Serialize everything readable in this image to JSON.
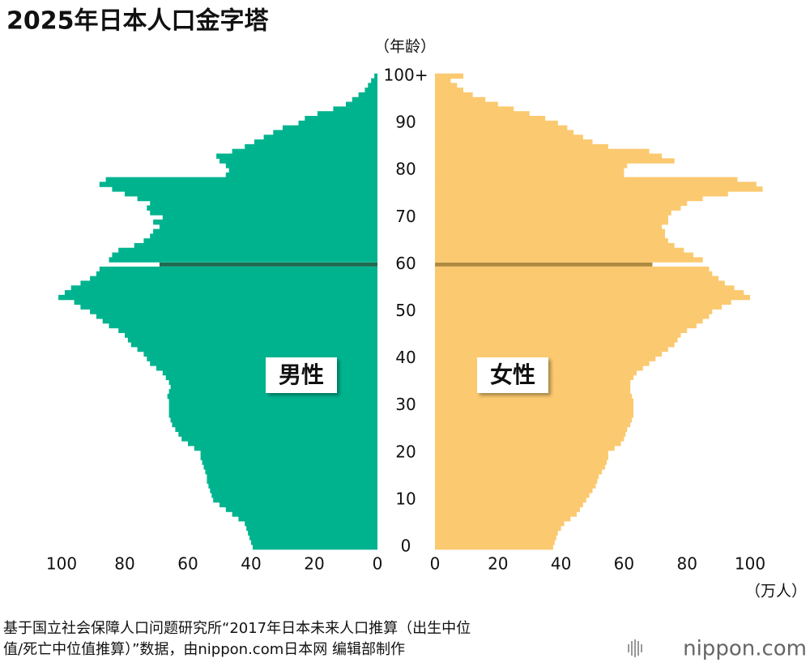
{
  "chart_data": {
    "type": "pyramid",
    "title": "2025年日本人口金字塔",
    "y_label": "（年龄）",
    "x_label": "（万人）",
    "x": [
      0,
      1,
      2,
      3,
      4,
      5,
      6,
      7,
      8,
      9,
      10,
      11,
      12,
      13,
      14,
      15,
      16,
      17,
      18,
      19,
      20,
      21,
      22,
      23,
      24,
      25,
      26,
      27,
      28,
      29,
      30,
      31,
      32,
      33,
      34,
      35,
      36,
      37,
      38,
      39,
      40,
      41,
      42,
      43,
      44,
      45,
      46,
      47,
      48,
      49,
      50,
      51,
      52,
      53,
      54,
      55,
      56,
      57,
      58,
      59,
      60,
      61,
      62,
      63,
      64,
      65,
      66,
      67,
      68,
      69,
      70,
      71,
      72,
      73,
      74,
      75,
      76,
      77,
      78,
      79,
      80,
      81,
      82,
      83,
      84,
      85,
      86,
      87,
      88,
      89,
      90,
      91,
      92,
      93,
      94,
      95,
      96,
      97,
      98,
      99,
      100
    ],
    "series": [
      {
        "name": "男性",
        "color": "#00b38f",
        "highlight_color": "#1f6a52",
        "values": [
          39.5,
          40,
          40.5,
          41,
          41.5,
          42,
          44,
          46,
          48,
          50,
          52,
          52.5,
          53,
          53.5,
          54,
          54,
          54.5,
          55,
          55.5,
          56,
          56,
          58,
          60,
          62,
          63,
          64,
          65,
          65.5,
          66,
          66,
          66,
          66,
          66.5,
          66,
          65.5,
          66,
          67,
          68,
          70,
          72,
          73,
          74,
          76,
          78,
          79,
          80,
          82,
          85,
          87,
          89,
          91,
          94,
          96,
          101,
          99,
          97,
          94,
          91,
          89,
          88,
          69,
          85,
          84,
          82,
          77,
          74,
          72,
          71,
          69,
          71,
          68,
          72,
          73,
          72,
          76,
          80,
          84,
          88,
          86,
          48,
          47,
          48,
          50,
          51,
          46,
          42,
          39,
          36,
          33,
          30,
          25,
          23,
          19,
          14,
          10,
          8,
          6,
          4,
          3,
          2,
          1
        ]
      },
      {
        "name": "女性",
        "color": "#fbc96f",
        "highlight_color": "#b08a3e",
        "values": [
          37.5,
          38,
          38.5,
          39,
          40,
          41,
          43,
          45,
          46,
          47,
          48,
          49,
          50,
          51,
          51.5,
          52,
          53,
          54,
          54.5,
          55,
          55,
          57,
          59,
          60,
          60.5,
          61,
          62,
          62.5,
          63,
          63,
          63,
          63,
          62.5,
          62,
          62,
          62,
          63,
          64,
          66,
          68,
          70,
          72,
          74,
          76,
          77,
          78,
          80,
          83,
          85,
          87,
          88,
          91,
          94,
          100,
          98,
          95,
          92,
          90,
          88,
          87,
          69,
          85,
          82,
          79,
          76,
          74,
          73,
          73,
          72,
          74,
          74,
          75,
          78,
          80,
          85,
          93,
          104,
          102,
          96,
          60,
          60,
          61,
          76,
          72,
          68,
          55,
          50,
          47,
          44,
          42,
          39,
          35,
          30,
          25,
          20,
          16,
          12,
          9,
          7,
          5,
          9
        ]
      }
    ],
    "highlight_x": 60,
    "xlim": [
      0,
      100
    ],
    "xticks": [
      0,
      20,
      40,
      60,
      80,
      100
    ],
    "ylim": [
      -0.5,
      100.5
    ],
    "yticks": [
      0,
      10,
      20,
      30,
      40,
      50,
      60,
      70,
      80,
      90,
      {
        "value": 100,
        "label": "100+"
      }
    ]
  },
  "source": [
    "基于国立社会保障人口问题研究所“2017年日本未来人口推算（出生中位",
    "值/死亡中位值推算）”数据，由nippon.com日本网 编辑部制作"
  ],
  "logo": "nippon.com"
}
